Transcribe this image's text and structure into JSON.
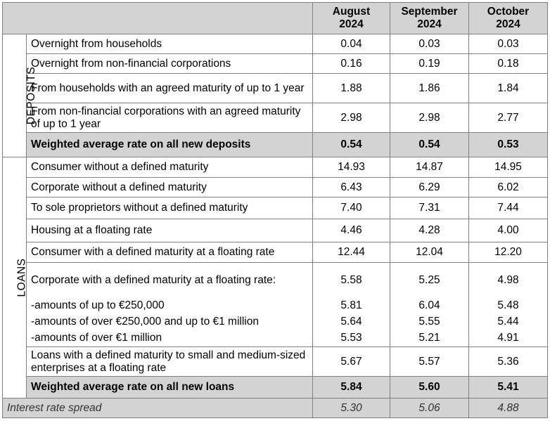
{
  "columns": [
    {
      "line1": "August",
      "line2": "2024"
    },
    {
      "line1": "September",
      "line2": "2024"
    },
    {
      "line1": "October",
      "line2": "2024"
    }
  ],
  "deposits": {
    "section_label": "DEPOSITS",
    "rows": [
      {
        "label": "Overnight from households",
        "values": [
          "0.04",
          "0.03",
          "0.03"
        ]
      },
      {
        "label": "Overnight from non-financial corporations",
        "values": [
          "0.16",
          "0.19",
          "0.18"
        ]
      },
      {
        "label": "From households with an agreed maturity of up to 1 year",
        "values": [
          "1.88",
          "1.86",
          "1.84"
        ]
      },
      {
        "label": "From non-financial corporations with an agreed maturity of up to 1 year",
        "values": [
          "2.98",
          "2.98",
          "2.77"
        ]
      }
    ],
    "total": {
      "label": "Weighted average rate on all new deposits",
      "values": [
        "0.54",
        "0.54",
        "0.53"
      ]
    }
  },
  "loans": {
    "section_label": "LOANS",
    "rows": [
      {
        "label": "Consumer without a defined maturity",
        "values": [
          "14.93",
          "14.87",
          "14.95"
        ]
      },
      {
        "label": "Corporate without a defined maturity",
        "values": [
          "6.43",
          "6.29",
          "6.02"
        ]
      },
      {
        "label": "To sole proprietors without a defined maturity",
        "values": [
          "7.40",
          "7.31",
          "7.44"
        ]
      },
      {
        "label": "Housing at a floating rate",
        "values": [
          "4.46",
          "4.28",
          "4.00"
        ]
      },
      {
        "label": "Consumer with a defined maturity at a floating rate",
        "values": [
          "12.44",
          "12.04",
          "12.20"
        ]
      },
      {
        "label": "Corporate with a defined maturity at a floating rate:",
        "values": [
          "5.58",
          "5.25",
          "4.98"
        ]
      },
      {
        "label": "-amounts of up to €250,000",
        "values": [
          "5.81",
          "6.04",
          "5.48"
        ]
      },
      {
        "label": "-amounts of over €250,000 and up to €1 million",
        "values": [
          "5.64",
          "5.55",
          "5.44"
        ]
      },
      {
        "label": "-amounts of over €1 million",
        "values": [
          "5.53",
          "5.21",
          "4.91"
        ]
      },
      {
        "label": "Loans with a defined maturity to small and medium-sized enterprises at a floating rate",
        "values": [
          "5.67",
          "5.57",
          "5.36"
        ]
      }
    ],
    "total": {
      "label": "Weighted average rate on all new loans",
      "values": [
        "5.84",
        "5.60",
        "5.41"
      ]
    }
  },
  "spread": {
    "label": "Interest rate spread",
    "values": [
      "5.30",
      "5.06",
      "4.88"
    ]
  }
}
